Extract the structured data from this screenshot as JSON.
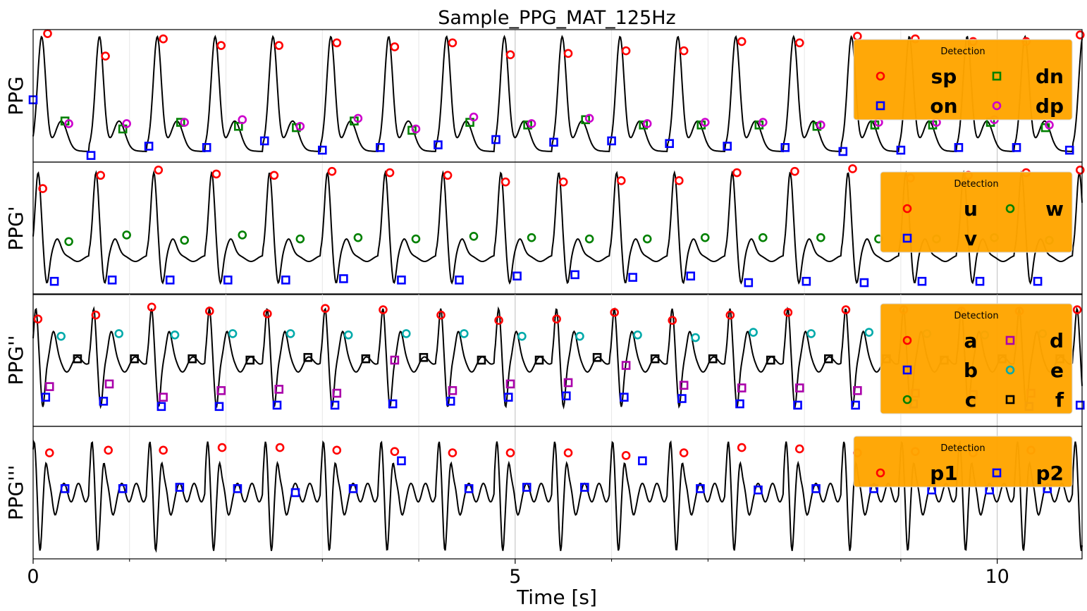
{
  "chart_data": {
    "type": "line",
    "title": "Sample_PPG_MAT_125Hz",
    "xlabel": "Time [s]",
    "xlim": [
      0,
      10.88
    ],
    "x_ticks": [
      "0",
      "5",
      "10"
    ],
    "x_tick_values": [
      0,
      5,
      10
    ],
    "x_minor_gridlines": [
      1,
      2,
      3,
      4,
      6,
      7,
      8,
      9
    ],
    "grid": true,
    "legend_title": "Detection",
    "legend_placement": "top-right",
    "line_color": "#000000",
    "legend_background": "#FFA500",
    "panels": [
      {
        "ylabel": "PPG",
        "series_shape": "ppg",
        "series": [
          {
            "name": "sp",
            "marker": "circle",
            "color": "#FF0000",
            "x": [
              0.15,
              0.75,
              1.35,
              1.95,
              2.55,
              3.15,
              3.75,
              4.35,
              4.95,
              5.55,
              6.15,
              6.75,
              7.35,
              7.95,
              8.55,
              9.15,
              9.75,
              10.3,
              10.86
            ],
            "y": [
              0.97,
              0.8,
              0.93,
              0.88,
              0.88,
              0.9,
              0.87,
              0.9,
              0.81,
              0.82,
              0.84,
              0.84,
              0.91,
              0.9,
              0.95,
              0.93,
              0.91,
              0.91,
              0.96
            ]
          },
          {
            "name": "on",
            "marker": "square",
            "color": "#0000FF",
            "x": [
              0.0,
              0.6,
              1.2,
              1.8,
              2.4,
              3.0,
              3.6,
              4.2,
              4.8,
              5.4,
              6.0,
              6.6,
              7.2,
              7.8,
              8.4,
              9.0,
              9.6,
              10.2,
              10.75
            ],
            "y": [
              0.47,
              0.05,
              0.12,
              0.11,
              0.16,
              0.09,
              0.11,
              0.13,
              0.17,
              0.15,
              0.16,
              0.14,
              0.12,
              0.11,
              0.08,
              0.09,
              0.11,
              0.11,
              0.09
            ]
          },
          {
            "name": "dn",
            "marker": "square",
            "color": "#008000",
            "x": [
              0.33,
              0.93,
              1.53,
              2.13,
              2.73,
              3.33,
              3.93,
              4.53,
              5.13,
              5.73,
              6.33,
              6.93,
              7.53,
              8.13,
              8.73,
              9.33,
              9.93,
              10.5
            ],
            "y": [
              0.31,
              0.25,
              0.3,
              0.27,
              0.26,
              0.31,
              0.24,
              0.3,
              0.28,
              0.32,
              0.28,
              0.28,
              0.28,
              0.27,
              0.28,
              0.28,
              0.3,
              0.26
            ]
          },
          {
            "name": "dp",
            "marker": "circle",
            "color": "#CC00CC",
            "x": [
              0.37,
              0.97,
              1.57,
              2.17,
              2.77,
              3.37,
              3.97,
              4.57,
              5.17,
              5.77,
              6.37,
              6.97,
              7.57,
              8.17,
              8.77,
              9.37,
              9.97,
              10.54
            ],
            "y": [
              0.29,
              0.29,
              0.3,
              0.32,
              0.27,
              0.33,
              0.25,
              0.34,
              0.29,
              0.33,
              0.29,
              0.3,
              0.3,
              0.28,
              0.3,
              0.3,
              0.32,
              0.28
            ]
          }
        ]
      },
      {
        "ylabel": "PPG'",
        "series_shape": "vpg",
        "series": [
          {
            "name": "u",
            "marker": "circle",
            "color": "#FF0000",
            "x": [
              0.1,
              0.7,
              1.3,
              1.9,
              2.5,
              3.1,
              3.7,
              4.3,
              4.9,
              5.5,
              6.1,
              6.7,
              7.3,
              7.9,
              8.5,
              9.1,
              9.7,
              10.3,
              10.86
            ],
            "y": [
              0.8,
              0.9,
              0.94,
              0.91,
              0.9,
              0.93,
              0.92,
              0.9,
              0.85,
              0.85,
              0.86,
              0.86,
              0.92,
              0.93,
              0.95,
              0.88,
              0.9,
              0.92,
              0.94
            ]
          },
          {
            "name": "v",
            "marker": "square",
            "color": "#0000FF",
            "x": [
              0.22,
              0.82,
              1.42,
              2.02,
              2.62,
              3.22,
              3.82,
              4.42,
              5.02,
              5.62,
              6.22,
              6.82,
              7.42,
              8.02,
              8.62,
              9.22,
              9.82,
              10.42
            ],
            "y": [
              0.1,
              0.11,
              0.11,
              0.11,
              0.11,
              0.12,
              0.11,
              0.11,
              0.14,
              0.15,
              0.13,
              0.14,
              0.09,
              0.1,
              0.09,
              0.1,
              0.1,
              0.1
            ]
          },
          {
            "name": "w",
            "marker": "circle",
            "color": "#008000",
            "x": [
              0.37,
              0.97,
              1.57,
              2.17,
              2.77,
              3.37,
              3.97,
              4.57,
              5.17,
              5.77,
              6.37,
              6.97,
              7.57,
              8.17,
              8.77,
              9.37,
              9.97,
              10.54
            ],
            "y": [
              0.4,
              0.45,
              0.41,
              0.45,
              0.42,
              0.43,
              0.42,
              0.44,
              0.43,
              0.42,
              0.42,
              0.43,
              0.43,
              0.43,
              0.42,
              0.42,
              0.43,
              0.41
            ]
          }
        ]
      },
      {
        "ylabel": "PPG''",
        "series_shape": "apg",
        "series": [
          {
            "name": "a",
            "marker": "circle",
            "color": "#FF0000",
            "x": [
              0.05,
              0.65,
              1.23,
              1.83,
              2.43,
              3.03,
              3.63,
              4.23,
              4.83,
              5.43,
              6.03,
              6.63,
              7.23,
              7.83,
              8.43,
              9.03,
              9.63,
              10.23,
              10.83
            ],
            "y": [
              0.81,
              0.84,
              0.9,
              0.87,
              0.85,
              0.89,
              0.88,
              0.84,
              0.8,
              0.81,
              0.86,
              0.8,
              0.84,
              0.86,
              0.88,
              0.88,
              0.87,
              0.87,
              0.88
            ]
          },
          {
            "name": "b",
            "marker": "square",
            "color": "#0000FF",
            "x": [
              0.13,
              0.73,
              1.33,
              1.93,
              2.53,
              3.13,
              3.73,
              4.33,
              4.93,
              5.53,
              6.13,
              6.73,
              7.33,
              7.93,
              8.53,
              9.13,
              9.73,
              10.33,
              10.86
            ],
            "y": [
              0.22,
              0.19,
              0.15,
              0.15,
              0.16,
              0.16,
              0.17,
              0.19,
              0.22,
              0.23,
              0.22,
              0.21,
              0.17,
              0.16,
              0.16,
              0.17,
              0.17,
              0.15,
              0.16
            ]
          },
          {
            "name": "c",
            "marker": "circle",
            "color": "#008000",
            "x": [],
            "y": []
          },
          {
            "name": "d",
            "marker": "square",
            "color": "#AA00AA",
            "x": [
              0.17,
              0.79,
              1.35,
              1.95,
              2.55,
              3.15,
              3.75,
              4.35,
              4.95,
              5.55,
              6.15,
              6.75,
              7.35,
              7.95,
              8.55,
              9.15,
              9.75,
              10.35
            ],
            "y": [
              0.3,
              0.32,
              0.22,
              0.27,
              0.28,
              0.25,
              0.5,
              0.27,
              0.32,
              0.33,
              0.46,
              0.31,
              0.29,
              0.29,
              0.27,
              0.25,
              0.24,
              0.25
            ]
          },
          {
            "name": "e",
            "marker": "circle",
            "color": "#00AAAA",
            "x": [
              0.29,
              0.89,
              1.47,
              2.07,
              2.67,
              3.27,
              3.87,
              4.47,
              5.07,
              5.67,
              6.27,
              6.87,
              7.47,
              8.07,
              8.67,
              9.27,
              9.87,
              10.47
            ],
            "y": [
              0.68,
              0.7,
              0.69,
              0.7,
              0.7,
              0.69,
              0.7,
              0.7,
              0.68,
              0.68,
              0.69,
              0.67,
              0.71,
              0.7,
              0.71,
              0.7,
              0.69,
              0.7
            ]
          },
          {
            "name": "f",
            "marker": "square",
            "color": "#000000",
            "x": [
              0.46,
              1.05,
              1.65,
              2.25,
              2.85,
              3.45,
              4.05,
              4.65,
              5.25,
              5.85,
              6.45,
              7.05,
              7.65,
              8.25,
              8.85,
              9.45,
              10.05,
              10.65
            ],
            "y": [
              0.51,
              0.51,
              0.51,
              0.5,
              0.52,
              0.51,
              0.52,
              0.5,
              0.5,
              0.52,
              0.51,
              0.51,
              0.5,
              0.51,
              0.51,
              0.5,
              0.51,
              0.51
            ]
          }
        ]
      },
      {
        "ylabel": "PPG'''",
        "series_shape": "jpg",
        "series": [
          {
            "name": "p1",
            "marker": "circle",
            "color": "#FF0000",
            "x": [
              0.17,
              0.78,
              1.35,
              1.96,
              2.56,
              3.15,
              3.75,
              4.35,
              4.95,
              5.55,
              6.15,
              6.75,
              7.35,
              7.95,
              8.55,
              9.15,
              9.75,
              10.35
            ],
            "y": [
              0.8,
              0.82,
              0.82,
              0.84,
              0.84,
              0.82,
              0.81,
              0.8,
              0.8,
              0.8,
              0.78,
              0.8,
              0.84,
              0.83,
              0.8,
              0.81,
              0.8,
              0.82
            ]
          },
          {
            "name": "p2",
            "marker": "square",
            "color": "#0000FF",
            "x": [
              0.33,
              0.93,
              1.52,
              2.12,
              2.72,
              3.32,
              3.82,
              4.52,
              5.12,
              5.72,
              6.32,
              6.92,
              7.52,
              8.12,
              8.72,
              9.32,
              9.92,
              10.52
            ],
            "y": [
              0.53,
              0.53,
              0.54,
              0.53,
              0.5,
              0.53,
              0.74,
              0.53,
              0.54,
              0.54,
              0.74,
              0.53,
              0.52,
              0.53,
              0.53,
              0.52,
              0.52,
              0.53
            ]
          }
        ]
      }
    ]
  }
}
